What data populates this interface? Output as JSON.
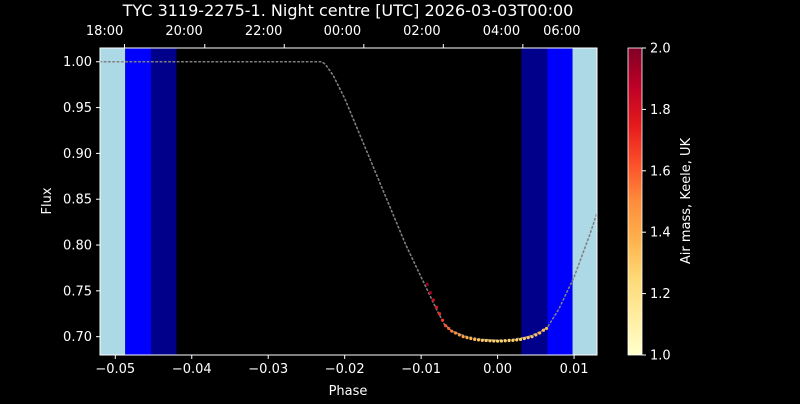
{
  "chart_data": {
    "type": "scatter",
    "title": "TYC 3119-2275-1. Night centre [UTC] 2026-03-03T00:00",
    "xlabel": "Phase",
    "ylabel": "Flux",
    "xlim": [
      -0.052,
      0.013
    ],
    "ylim": [
      0.68,
      1.015
    ],
    "x_ticks": [
      -0.05,
      -0.04,
      -0.03,
      -0.02,
      -0.01,
      0.0,
      0.01
    ],
    "x_tick_labels": [
      "−0.05",
      "−0.04",
      "−0.03",
      "−0.02",
      "−0.01",
      "0.00",
      "0.01"
    ],
    "y_ticks": [
      0.7,
      0.75,
      0.8,
      0.85,
      0.9,
      0.95,
      1.0
    ],
    "y_tick_labels": [
      "0.70",
      "0.75",
      "0.80",
      "0.85",
      "0.90",
      "0.95",
      "1.00"
    ],
    "top_axis": {
      "ticks": [
        -0.0488,
        -0.0383,
        -0.0279,
        -0.0175,
        -0.0071,
        0.0033
      ],
      "labels": [
        "18:00",
        "20:00",
        "22:00",
        "00:00",
        "02:00",
        "04:00",
        "06:00"
      ],
      "label_phases": [
        -0.0514,
        -0.041,
        -0.0306,
        -0.0203,
        -0.0099,
        0.0005,
        0.0084
      ]
    },
    "twilight_bands": [
      {
        "from": -0.052,
        "to": -0.0487,
        "color": "#add8e6"
      },
      {
        "from": -0.0487,
        "to": -0.0453,
        "color": "#0000ff"
      },
      {
        "from": -0.0453,
        "to": -0.042,
        "color": "#00008b"
      },
      {
        "from": 0.0031,
        "to": 0.0065,
        "color": "#00008b"
      },
      {
        "from": 0.0065,
        "to": 0.0098,
        "color": "#0000ff"
      },
      {
        "from": 0.0098,
        "to": 0.013,
        "color": "#add8e6"
      }
    ],
    "model_curve": {
      "color": "#808080",
      "points": [
        [
          -0.052,
          1.0
        ],
        [
          -0.023,
          1.0
        ],
        [
          -0.0225,
          0.997
        ],
        [
          -0.0215,
          0.985
        ],
        [
          -0.02,
          0.96
        ],
        [
          -0.016,
          0.88
        ],
        [
          -0.012,
          0.8
        ],
        [
          -0.01,
          0.765
        ],
        [
          -0.008,
          0.73
        ],
        [
          -0.007,
          0.714
        ],
        [
          -0.006,
          0.706
        ],
        [
          -0.004,
          0.7
        ],
        [
          -0.002,
          0.697
        ],
        [
          0.0,
          0.696
        ],
        [
          0.002,
          0.697
        ],
        [
          0.004,
          0.7
        ],
        [
          0.0055,
          0.705
        ],
        [
          0.0065,
          0.71
        ],
        [
          0.008,
          0.73
        ],
        [
          0.01,
          0.765
        ],
        [
          0.012,
          0.81
        ],
        [
          0.013,
          0.835
        ]
      ]
    },
    "observed": {
      "points": [
        [
          -0.0092,
          0.757,
          1.95
        ],
        [
          -0.0088,
          0.748,
          1.88
        ],
        [
          -0.0084,
          0.74,
          1.82
        ],
        [
          -0.008,
          0.732,
          1.76
        ],
        [
          -0.0076,
          0.725,
          1.71
        ],
        [
          -0.0072,
          0.718,
          1.66
        ],
        [
          -0.0068,
          0.712,
          1.62
        ],
        [
          -0.0064,
          0.709,
          1.58
        ],
        [
          -0.006,
          0.706,
          1.54
        ],
        [
          -0.0055,
          0.704,
          1.5
        ],
        [
          -0.005,
          0.702,
          1.46
        ],
        [
          -0.0045,
          0.7,
          1.43
        ],
        [
          -0.004,
          0.699,
          1.4
        ],
        [
          -0.0035,
          0.698,
          1.37
        ],
        [
          -0.003,
          0.697,
          1.35
        ],
        [
          -0.0025,
          0.6965,
          1.33
        ],
        [
          -0.002,
          0.696,
          1.31
        ],
        [
          -0.0015,
          0.6958,
          1.3
        ],
        [
          -0.001,
          0.6955,
          1.29
        ],
        [
          -0.0005,
          0.6953,
          1.28
        ],
        [
          0.0,
          0.6952,
          1.27
        ],
        [
          0.0005,
          0.6953,
          1.27
        ],
        [
          0.001,
          0.6955,
          1.27
        ],
        [
          0.0015,
          0.6958,
          1.27
        ],
        [
          0.002,
          0.696,
          1.27
        ],
        [
          0.0025,
          0.6965,
          1.28
        ],
        [
          0.003,
          0.697,
          1.28
        ],
        [
          0.0035,
          0.698,
          1.29
        ],
        [
          0.004,
          0.699,
          1.3
        ],
        [
          0.0045,
          0.7,
          1.31
        ],
        [
          0.005,
          0.702,
          1.32
        ],
        [
          0.0055,
          0.704,
          1.33
        ],
        [
          0.006,
          0.707,
          1.34
        ],
        [
          0.0064,
          0.709,
          1.35
        ]
      ]
    },
    "colorbar": {
      "label": "Air mass, Keele, UK",
      "range": [
        1.0,
        2.0
      ],
      "ticks": [
        1.0,
        1.2,
        1.4,
        1.6,
        1.8,
        2.0
      ],
      "tick_labels": [
        "1.0",
        "1.2",
        "1.4",
        "1.6",
        "1.8",
        "2.0"
      ],
      "colormap": [
        "#ffffcc",
        "#ffeda0",
        "#fed976",
        "#feb24c",
        "#fd8d3c",
        "#fc4e2a",
        "#e31a1c",
        "#bd0026",
        "#800026"
      ]
    }
  }
}
